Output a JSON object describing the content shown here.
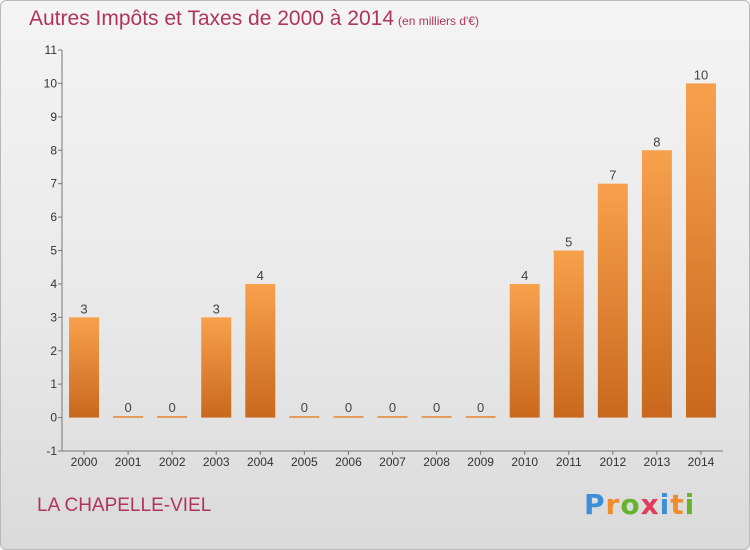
{
  "colors": {
    "bar_light": "#f7a14d",
    "bar_dark": "#c9681c",
    "title": "#b0345c"
  },
  "chart_data": {
    "type": "bar",
    "title": "Autres Impôts et Taxes de 2000 à 2014",
    "subtitle": "(en milliers d'€)",
    "categories": [
      "2000",
      "2001",
      "2002",
      "2003",
      "2004",
      "2005",
      "2006",
      "2007",
      "2008",
      "2009",
      "2010",
      "2011",
      "2012",
      "2013",
      "2014"
    ],
    "values": [
      3,
      0,
      0,
      3,
      4,
      0,
      0,
      0,
      0,
      0,
      4,
      5,
      7,
      8,
      10
    ],
    "y_ticks": [
      "-1",
      "0",
      "1",
      "2",
      "3",
      "4",
      "5",
      "6",
      "7",
      "8",
      "9",
      "10",
      "11"
    ],
    "ylim": [
      -1,
      11
    ],
    "grid": false,
    "legend": "none"
  },
  "footer": {
    "commune": "LA CHAPELLE-VIEL",
    "logo_letters": [
      "P",
      "r",
      "o",
      "x",
      "i",
      "t",
      "i"
    ]
  }
}
